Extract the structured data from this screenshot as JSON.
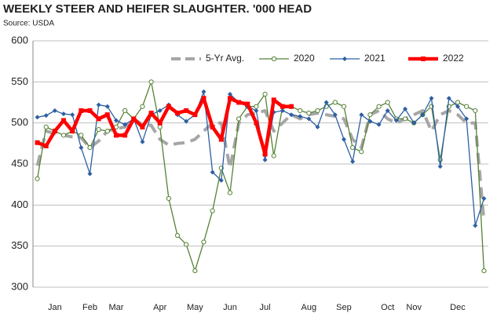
{
  "chart_data": {
    "type": "line",
    "title": "WEEKLY STEER AND HEIFER SLAUGHTER. '000 HEAD",
    "subtitle": "Source: USDA",
    "categories": [
      null,
      null,
      "Jan",
      null,
      null,
      null,
      "Feb",
      null,
      null,
      "Mar",
      null,
      null,
      null,
      null,
      "Apr",
      null,
      null,
      null,
      "May",
      null,
      null,
      null,
      "Jun",
      null,
      null,
      null,
      "Jul",
      null,
      null,
      null,
      null,
      "Aug",
      null,
      null,
      null,
      "Sep",
      null,
      null,
      null,
      null,
      "Oct",
      null,
      null,
      "Nov",
      null,
      null,
      null,
      null,
      "Dec",
      null,
      null,
      null
    ],
    "series": [
      {
        "name": "5-Yr Avg.",
        "color": "#a6a6a6",
        "style": "dashed",
        "values": [
          448,
          490,
          487,
          485,
          483,
          482,
          470,
          478,
          490,
          493,
          495,
          505,
          498,
          497,
          480,
          473,
          475,
          476,
          480,
          490,
          500,
          500,
          445,
          500,
          510,
          512,
          515,
          490,
          500,
          510,
          505,
          510,
          512,
          510,
          508,
          505,
          480,
          470,
          510,
          515,
          505,
          500,
          505,
          510,
          515,
          490,
          510,
          515,
          510,
          500,
          500,
          380
        ]
      },
      {
        "name": "2020",
        "color": "#548235",
        "style": "circle",
        "values": [
          432,
          495,
          490,
          485,
          490,
          485,
          470,
          492,
          490,
          495,
          515,
          505,
          520,
          550,
          495,
          408,
          363,
          352,
          320,
          355,
          393,
          445,
          415,
          505,
          520,
          520,
          535,
          460,
          520,
          520,
          515,
          512,
          515,
          520,
          525,
          520,
          470,
          465,
          510,
          520,
          525,
          505,
          505,
          500,
          510,
          520,
          455,
          520,
          525,
          520,
          515,
          320
        ]
      },
      {
        "name": "2021",
        "color": "#2e5fa3",
        "style": "diamond",
        "values": [
          507,
          509,
          515,
          511,
          510,
          470,
          438,
          522,
          520,
          503,
          498,
          505,
          477,
          510,
          515,
          522,
          510,
          502,
          510,
          538,
          440,
          430,
          535,
          525,
          520,
          515,
          455,
          513,
          515,
          510,
          508,
          505,
          495,
          525,
          510,
          480,
          453,
          510,
          502,
          498,
          515,
          503,
          517,
          500,
          510,
          530,
          447,
          530,
          520,
          505,
          375,
          408
        ]
      },
      {
        "name": "2022",
        "color": "#ff0000",
        "style": "thick",
        "values": [
          476,
          472,
          490,
          503,
          490,
          515,
          515,
          505,
          510,
          485,
          485,
          505,
          495,
          512,
          500,
          520,
          512,
          515,
          510,
          530,
          495,
          480,
          530,
          525,
          523,
          500,
          462,
          528,
          520,
          520,
          null,
          null,
          null,
          null,
          null,
          null,
          null,
          null,
          null,
          null,
          null,
          null,
          null,
          null,
          null,
          null,
          null,
          null,
          null,
          null,
          null,
          null
        ]
      }
    ],
    "ylim": [
      300,
      600
    ],
    "yticks": [
      300,
      350,
      400,
      450,
      500,
      550,
      600
    ],
    "grid": true
  }
}
